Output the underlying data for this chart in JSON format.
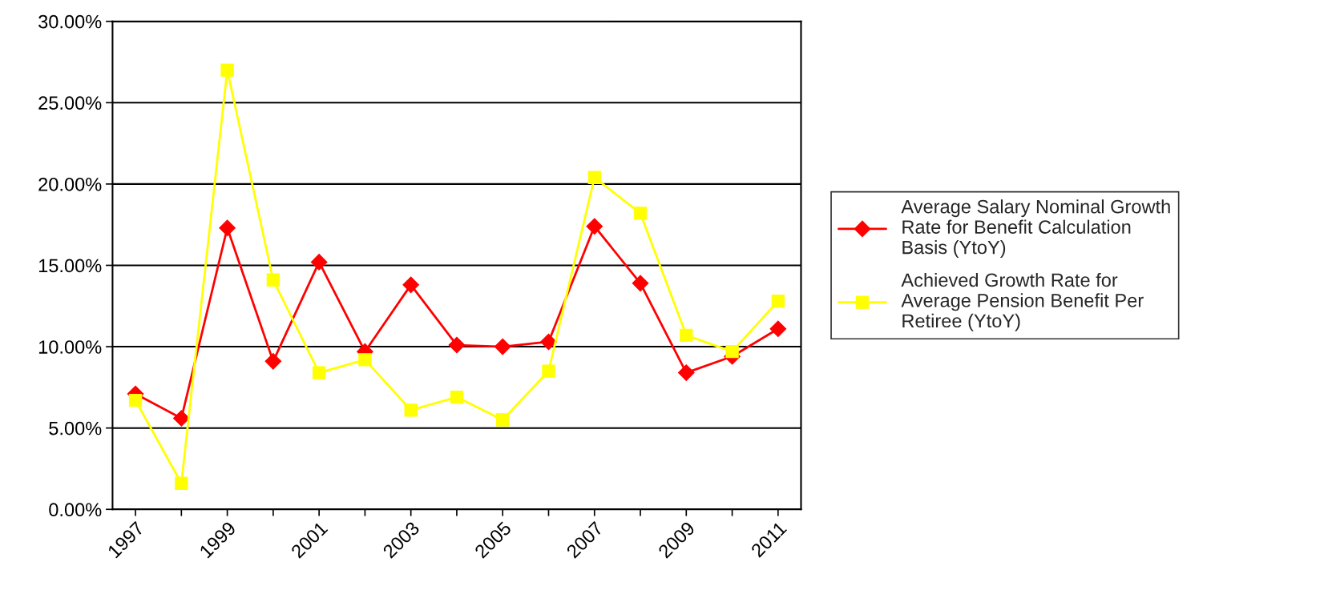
{
  "chart_data": {
    "type": "line",
    "categories": [
      "1997",
      null,
      "1999",
      null,
      "2001",
      null,
      "2003",
      null,
      "2005",
      null,
      "2007",
      null,
      "2009",
      null,
      "2011"
    ],
    "series": [
      {
        "name": "Average Salary Nominal Growth\nRate for Benefit Calculation\nBasis (YtoY)",
        "color": "#ff0000",
        "marker": "diamond",
        "values": [
          7.1,
          5.6,
          17.3,
          9.1,
          15.2,
          9.7,
          13.8,
          10.1,
          10.0,
          10.3,
          17.4,
          13.9,
          8.4,
          9.4,
          11.1
        ]
      },
      {
        "name": "Achieved Growth Rate for\nAverage Pension Benefit Per\nRetiree (YtoY)",
        "color": "#ffff00",
        "marker": "square",
        "values": [
          6.7,
          1.6,
          27.0,
          14.1,
          8.4,
          9.2,
          6.1,
          6.9,
          5.5,
          8.5,
          20.4,
          18.2,
          10.7,
          9.7,
          12.8
        ]
      }
    ],
    "ylim": [
      0,
      30
    ],
    "yticks": [
      {
        "value": 0,
        "label": "0.00%"
      },
      {
        "value": 5,
        "label": "5.00%"
      },
      {
        "value": 10,
        "label": "10.00%"
      },
      {
        "value": 15,
        "label": "15.00%"
      },
      {
        "value": 20,
        "label": "20.00%"
      },
      {
        "value": 25,
        "label": "25.00%"
      },
      {
        "value": 30,
        "label": "30.00%"
      }
    ],
    "grid": "y",
    "legend": "right",
    "line_style": "solid"
  }
}
